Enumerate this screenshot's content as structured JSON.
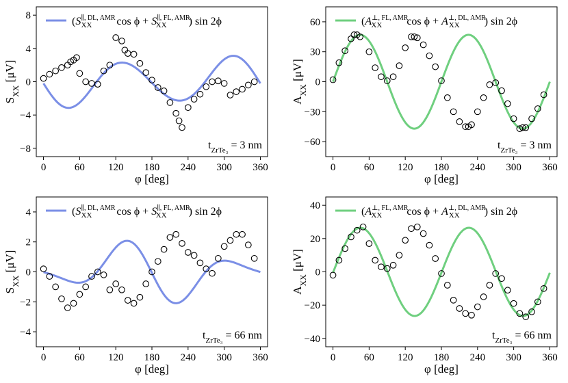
{
  "colors": {
    "blue": "#7b8fe6",
    "green": "#6fcf7f",
    "marker": "#000000"
  },
  "chart_data": [
    {
      "id": "a",
      "type": "scatter",
      "xlabel": "φ [deg]",
      "ylabel": {
        "main": "S",
        "sub": "XX",
        "unit": " [μV]"
      },
      "xlim": [
        -12,
        372
      ],
      "ylim": [
        -9,
        9
      ],
      "xticks": [
        0,
        60,
        120,
        180,
        240,
        300,
        360
      ],
      "xticklabels": [
        "0",
        "60",
        "120",
        "180",
        "240",
        "300",
        "360"
      ],
      "yticks": [
        -8,
        -4,
        0,
        4,
        8
      ],
      "yticklabels": [
        "−8",
        "−4",
        "0",
        "4",
        "8"
      ],
      "legend": {
        "open": "(",
        "t1": "S",
        "s1": "XX",
        "p1": "∥, DL, AMR",
        "mid": " cos ϕ + ",
        "t2": "S",
        "s2": "XX",
        "p2": "∥, FL, AMR",
        "close": ") sin 2ϕ"
      },
      "annotation": {
        "pre": "t",
        "sub": "ZrTe₃",
        "post": " = 3 nm"
      },
      "color": "#7b8fe6",
      "points": [
        [
          0,
          0.4
        ],
        [
          10,
          0.9
        ],
        [
          20,
          1.3
        ],
        [
          30,
          1.7
        ],
        [
          40,
          2.0
        ],
        [
          45,
          2.4
        ],
        [
          50,
          2.6
        ],
        [
          55,
          2.9
        ],
        [
          60,
          1.0
        ],
        [
          70,
          0.0
        ],
        [
          80,
          -0.2
        ],
        [
          90,
          -0.3
        ],
        [
          100,
          1.3
        ],
        [
          110,
          2.0
        ],
        [
          120,
          5.3
        ],
        [
          130,
          4.9
        ],
        [
          135,
          3.8
        ],
        [
          140,
          3.4
        ],
        [
          150,
          3.3
        ],
        [
          160,
          2.2
        ],
        [
          170,
          1.1
        ],
        [
          180,
          0.2
        ],
        [
          190,
          -0.7
        ],
        [
          200,
          -1.1
        ],
        [
          210,
          -2.5
        ],
        [
          220,
          -3.8
        ],
        [
          225,
          -4.7
        ],
        [
          230,
          -5.5
        ],
        [
          240,
          -3.1
        ],
        [
          250,
          -2.1
        ],
        [
          260,
          -1.5
        ],
        [
          270,
          -0.6
        ],
        [
          280,
          0.0
        ],
        [
          290,
          0.1
        ],
        [
          300,
          -0.2
        ],
        [
          310,
          -1.6
        ],
        [
          320,
          -1.2
        ],
        [
          330,
          -0.9
        ],
        [
          340,
          -0.4
        ],
        [
          350,
          0.0
        ]
      ],
      "fit": {
        "a": -0.6,
        "b": -2.7,
        "c": 0.06
      }
    },
    {
      "id": "b",
      "type": "scatter",
      "xlabel": "φ [deg]",
      "ylabel": {
        "main": "A",
        "sub": "XX",
        "unit": " [μV]"
      },
      "xlim": [
        -12,
        372
      ],
      "ylim": [
        -75,
        75
      ],
      "xticks": [
        0,
        60,
        120,
        180,
        240,
        300,
        360
      ],
      "xticklabels": [
        "0",
        "60",
        "120",
        "180",
        "240",
        "300",
        "360"
      ],
      "yticks": [
        -60,
        -30,
        0,
        30,
        60
      ],
      "yticklabels": [
        "−60",
        "−30",
        "0",
        "30",
        "60"
      ],
      "legend": {
        "open": "(",
        "t1": "A",
        "s1": "XX",
        "p1": "⊥, FL, AMR",
        "mid": "cos ϕ + ",
        "t2": "A",
        "s2": "XX",
        "p2": "⊥, DL, AMR",
        "close": ") sin 2ϕ"
      },
      "annotation": {
        "pre": "t",
        "sub": "ZrTe₃",
        "post": " = 3 nm"
      },
      "color": "#6fcf7f",
      "points": [
        [
          0,
          2
        ],
        [
          10,
          19
        ],
        [
          20,
          31
        ],
        [
          30,
          43
        ],
        [
          35,
          47
        ],
        [
          40,
          47
        ],
        [
          45,
          45
        ],
        [
          60,
          30
        ],
        [
          70,
          14
        ],
        [
          80,
          5
        ],
        [
          90,
          1
        ],
        [
          100,
          5
        ],
        [
          110,
          16
        ],
        [
          120,
          34
        ],
        [
          130,
          45
        ],
        [
          135,
          45
        ],
        [
          140,
          44
        ],
        [
          150,
          37
        ],
        [
          160,
          26
        ],
        [
          170,
          15
        ],
        [
          180,
          1
        ],
        [
          190,
          -16
        ],
        [
          200,
          -30
        ],
        [
          210,
          -40
        ],
        [
          220,
          -45
        ],
        [
          225,
          -45
        ],
        [
          230,
          -43
        ],
        [
          240,
          -30
        ],
        [
          250,
          -16
        ],
        [
          260,
          -3
        ],
        [
          270,
          -1
        ],
        [
          280,
          -9
        ],
        [
          290,
          -22
        ],
        [
          300,
          -37
        ],
        [
          310,
          -47
        ],
        [
          315,
          -46
        ],
        [
          320,
          -46
        ],
        [
          330,
          -37
        ],
        [
          340,
          -27
        ],
        [
          350,
          -13
        ]
      ],
      "fit": {
        "a": 0,
        "b": 47,
        "c": 0
      }
    },
    {
      "id": "c",
      "type": "scatter",
      "xlabel": "φ [deg]",
      "ylabel": {
        "main": "S",
        "sub": "XX",
        "unit": " [μV]"
      },
      "xlim": [
        -12,
        372
      ],
      "ylim": [
        -5,
        5
      ],
      "xticks": [
        0,
        60,
        120,
        180,
        240,
        300,
        360
      ],
      "xticklabels": [
        "0",
        "60",
        "120",
        "180",
        "240",
        "300",
        "360"
      ],
      "yticks": [
        -4,
        -2,
        0,
        2,
        4
      ],
      "yticklabels": [
        "−4",
        "−2",
        "0",
        "2",
        "4"
      ],
      "legend": {
        "open": "(",
        "t1": "S",
        "s1": "XX",
        "p1": "∥, DL, AMR",
        "mid": " cos ϕ + ",
        "t2": "S",
        "s2": "XX",
        "p2": "∥, FL, AMR",
        "close": ") sin 2ϕ"
      },
      "annotation": {
        "pre": "t",
        "sub": "ZrTe₃",
        "post": " = 66 nm"
      },
      "color": "#7b8fe6",
      "points": [
        [
          0,
          0.2
        ],
        [
          10,
          -0.3
        ],
        [
          20,
          -1.0
        ],
        [
          30,
          -1.8
        ],
        [
          40,
          -2.4
        ],
        [
          50,
          -2.1
        ],
        [
          60,
          -1.5
        ],
        [
          70,
          -1.0
        ],
        [
          80,
          -0.3
        ],
        [
          90,
          0.0
        ],
        [
          100,
          -0.2
        ],
        [
          110,
          -1.2
        ],
        [
          120,
          -0.8
        ],
        [
          130,
          -1.2
        ],
        [
          140,
          -1.9
        ],
        [
          150,
          -2.1
        ],
        [
          160,
          -1.7
        ],
        [
          170,
          -0.8
        ],
        [
          180,
          0.0
        ],
        [
          190,
          0.7
        ],
        [
          200,
          1.5
        ],
        [
          210,
          2.3
        ],
        [
          220,
          2.5
        ],
        [
          230,
          1.9
        ],
        [
          240,
          1.3
        ],
        [
          250,
          1.1
        ],
        [
          260,
          0.6
        ],
        [
          270,
          0.2
        ],
        [
          280,
          -0.1
        ],
        [
          290,
          0.9
        ],
        [
          300,
          1.7
        ],
        [
          310,
          2.1
        ],
        [
          320,
          2.5
        ],
        [
          330,
          2.5
        ],
        [
          340,
          1.8
        ],
        [
          350,
          0.9
        ]
      ],
      "fit": {
        "a": 1.0,
        "b": -1.35,
        "c": 0.03
      }
    },
    {
      "id": "d",
      "type": "scatter",
      "xlabel": "φ [deg]",
      "ylabel": {
        "main": "A",
        "sub": "XX",
        "unit": " [μV]"
      },
      "xlim": [
        -12,
        372
      ],
      "ylim": [
        -45,
        45
      ],
      "xticks": [
        0,
        60,
        120,
        180,
        240,
        300,
        360
      ],
      "xticklabels": [
        "0",
        "60",
        "120",
        "180",
        "240",
        "300",
        "360"
      ],
      "yticks": [
        -40,
        -20,
        0,
        20,
        40
      ],
      "yticklabels": [
        "−40",
        "−20",
        "0",
        "20",
        "40"
      ],
      "legend": {
        "open": "(",
        "t1": "A",
        "s1": "XX",
        "p1": "⊥, FL, AMR",
        "mid": "cos ϕ + ",
        "t2": "A",
        "s2": "XX",
        "p2": "⊥, DL, AMR",
        "close": ") sin 2ϕ"
      },
      "annotation": {
        "pre": "t",
        "sub": "ZrTe₃",
        "post": " = 66 nm"
      },
      "color": "#6fcf7f",
      "points": [
        [
          0,
          -2
        ],
        [
          10,
          7
        ],
        [
          20,
          14
        ],
        [
          30,
          21
        ],
        [
          40,
          25
        ],
        [
          50,
          27
        ],
        [
          60,
          17
        ],
        [
          70,
          7
        ],
        [
          80,
          3
        ],
        [
          90,
          2
        ],
        [
          100,
          4
        ],
        [
          110,
          10
        ],
        [
          120,
          19
        ],
        [
          130,
          26
        ],
        [
          140,
          27
        ],
        [
          150,
          23
        ],
        [
          160,
          16
        ],
        [
          170,
          8
        ],
        [
          180,
          -1
        ],
        [
          190,
          -8
        ],
        [
          200,
          -17
        ],
        [
          210,
          -22
        ],
        [
          220,
          -25
        ],
        [
          230,
          -26
        ],
        [
          240,
          -21
        ],
        [
          250,
          -15
        ],
        [
          260,
          -8
        ],
        [
          270,
          -1
        ],
        [
          280,
          -4
        ],
        [
          290,
          -11
        ],
        [
          300,
          -19
        ],
        [
          310,
          -25
        ],
        [
          320,
          -27
        ],
        [
          330,
          -24
        ],
        [
          340,
          -18
        ],
        [
          350,
          -10
        ]
      ],
      "fit": {
        "a": 0,
        "b": 26.5,
        "c": -0.02
      }
    }
  ]
}
